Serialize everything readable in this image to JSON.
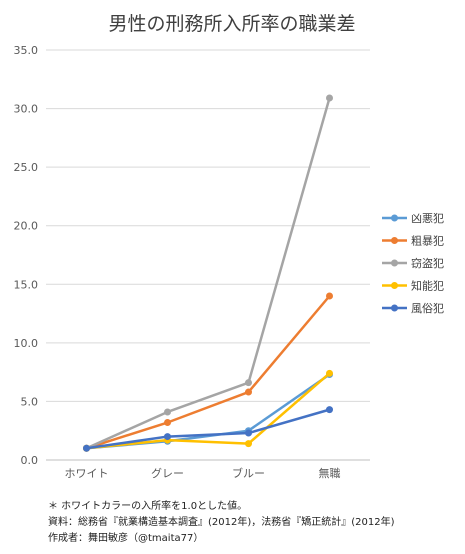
{
  "chart_data": {
    "type": "line",
    "title": "男性の刑務所入所率の職業差",
    "categories": [
      "ホワイト",
      "グレー",
      "ブルー",
      "無職"
    ],
    "ylim": [
      0,
      35
    ],
    "yticks": [
      "0.0",
      "5.0",
      "10.0",
      "15.0",
      "20.0",
      "25.0",
      "30.0",
      "35.0"
    ],
    "grid": true,
    "legend_position": "right",
    "series": [
      {
        "name": "凶悪犯",
        "color": "#5b9bd5",
        "values": [
          1.0,
          1.6,
          2.5,
          7.3
        ]
      },
      {
        "name": "粗暴犯",
        "color": "#ed7d31",
        "values": [
          1.0,
          3.2,
          5.8,
          14.0
        ]
      },
      {
        "name": "窃盗犯",
        "color": "#a5a5a5",
        "values": [
          1.0,
          4.1,
          6.6,
          30.9
        ]
      },
      {
        "name": "知能犯",
        "color": "#ffc000",
        "values": [
          1.0,
          1.7,
          1.4,
          7.4
        ]
      },
      {
        "name": "風俗犯",
        "color": "#4472c4",
        "values": [
          1.0,
          2.0,
          2.3,
          4.3
        ]
      }
    ]
  },
  "notes": {
    "line1": "＊ ホワイトカラーの入所率を1.0とした値。",
    "line2": "資料：総務省『就業構造基本調査』(2012年)，法務省『矯正統計』(2012年)",
    "line3": "作成者：舞田敏彦（@tmaita77）"
  }
}
